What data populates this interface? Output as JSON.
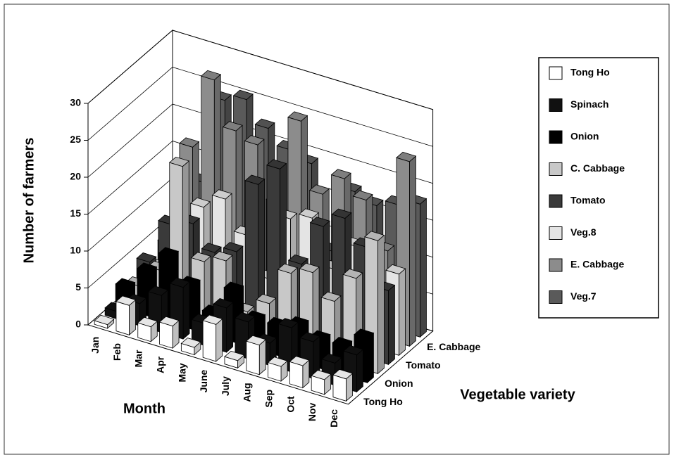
{
  "chart_data": {
    "type": "bar3d",
    "y_label": "Number of farmers",
    "x_label": "Month",
    "z_label": "Vegetable variety",
    "categories": [
      "Jan",
      "Feb",
      "Mar",
      "Apr",
      "May",
      "June",
      "July",
      "Aug",
      "Sep",
      "Oct",
      "Nov",
      "Dec"
    ],
    "ylim": [
      0,
      30
    ],
    "yticks": [
      0,
      5,
      10,
      15,
      20,
      25,
      30
    ],
    "grid": true,
    "legend": "right",
    "series": [
      {
        "name": "Tong Ho",
        "color": "#ffffff",
        "values": [
          0.5,
          4,
          2,
          3,
          1,
          5,
          1,
          4,
          2,
          3,
          2,
          3
        ]
      },
      {
        "name": "Spinach",
        "color": "#111111",
        "values": [
          1,
          3,
          5,
          7,
          3,
          6,
          5,
          3,
          6,
          5,
          3,
          5
        ]
      },
      {
        "name": "Onion",
        "color": "#000000",
        "values": [
          3,
          6,
          9,
          6,
          3,
          7,
          4,
          4,
          5,
          4,
          4,
          6
        ]
      },
      {
        "name": "C. Cabbage",
        "color": "#c8c8c8",
        "values": [
          2,
          5,
          20,
          8,
          9,
          3,
          5,
          10,
          11,
          8,
          12,
          18
        ]
      },
      {
        "name": "Tomato",
        "color": "#3a3a3a",
        "values": [
          4,
          10,
          11,
          8,
          9,
          19,
          22,
          10,
          16,
          18,
          15,
          10
        ]
      },
      {
        "name": "Veg.8",
        "color": "#e4e4e4",
        "values": [
          2,
          8,
          12,
          14,
          10,
          5,
          14,
          15,
          9,
          13,
          6,
          11
        ]
      },
      {
        "name": "E. Cabbage",
        "color": "#8c8c8c",
        "values": [
          4,
          18,
          28,
          22,
          21,
          14,
          26,
          17,
          20,
          18,
          12,
          25
        ]
      },
      {
        "name": "Veg.7",
        "color": "#5a5a5a",
        "values": [
          3,
          12,
          24,
          25,
          22,
          20,
          19,
          8,
          17,
          16,
          17,
          18
        ]
      }
    ]
  }
}
